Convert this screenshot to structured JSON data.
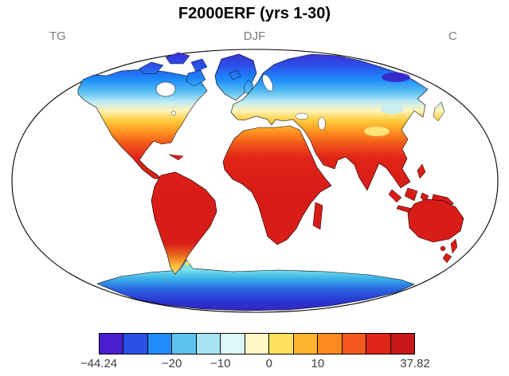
{
  "header": {
    "title": "F2000ERF (yrs 1-30)",
    "left_label": "TG",
    "center_label": "DJF",
    "right_label": "C"
  },
  "chart_data": {
    "type": "heatmap",
    "subtype": "global temperature map",
    "projection": "robinson",
    "title": "F2000ERF (yrs 1-30)",
    "variable": "TG",
    "season": "DJF",
    "units": "C",
    "data_min": -44.24,
    "data_max": 37.82,
    "contour_levels_estimated": [
      -30,
      -25,
      -20,
      -15,
      -10,
      -5,
      0,
      5,
      10,
      15,
      20,
      25
    ],
    "palette": [
      "#4A1ED0",
      "#2A50E8",
      "#1E8CFA",
      "#5EC2F0",
      "#A8E4F4",
      "#DFF6F8",
      "#FFF8C8",
      "#FFE25C",
      "#FFB52E",
      "#FF8A1E",
      "#F4581C",
      "#E02418",
      "#C8161A"
    ],
    "colorbar_ticks": [
      {
        "label": "−44.24",
        "boundary_index": 0
      },
      {
        "label": "−20",
        "boundary_index": 3
      },
      {
        "label": "−10",
        "boundary_index": 5
      },
      {
        "label": "0",
        "boundary_index": 7
      },
      {
        "label": "10",
        "boundary_index": 9
      },
      {
        "label": "37.82",
        "boundary_index": 13
      }
    ],
    "legend_position": "bottom",
    "grid": false,
    "shading": "land and ice only; ocean masked white",
    "pattern_summary": "Coldest (purple/blue) over Arctic islands, Greenland, Siberia, northern Canada and Antarctica; cyan-to-yellow transition across mid-latitude North America and Eurasia; hot (orange/red) over tropics, South America, Africa, Arabia, India, Southeast Asia and Australia; orange/yellow over Patagonia and the Antarctic Peninsula edge."
  }
}
